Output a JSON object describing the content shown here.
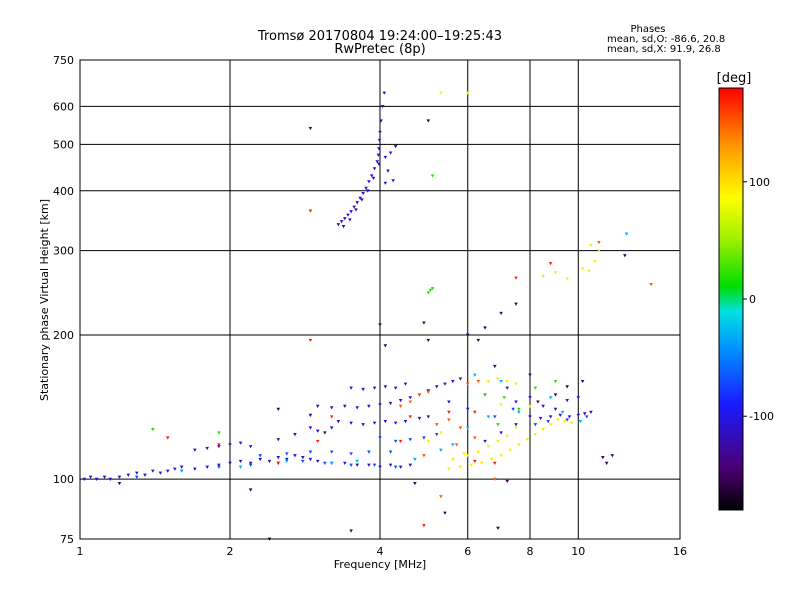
{
  "chart_data": {
    "type": "scatter",
    "title": "Tromsø 20170804 19:24:00–19:25:43",
    "subtitle": "RwPretec (8p)",
    "stats": {
      "heading": "Phases",
      "line_o": "mean, sd,O: -86.6, 20.8",
      "line_x": "mean, sd,X: 91.9, 26.8"
    },
    "xlabel": "Frequency [MHz]",
    "ylabel": "Stationary phase Virtual Height [km]",
    "x_scale": "log",
    "y_scale": "log",
    "xlim": [
      1,
      16
    ],
    "ylim": [
      75,
      750
    ],
    "x_ticks": [
      1,
      2,
      4,
      6,
      8,
      10,
      16
    ],
    "x_tick_labels": [
      "1",
      "2",
      "4",
      "6",
      "8",
      "10",
      "16"
    ],
    "y_ticks": [
      75,
      100,
      200,
      300,
      400,
      500,
      600,
      750
    ],
    "y_tick_labels": [
      "75",
      "100",
      "200",
      "300",
      "400",
      "500",
      "600",
      "750"
    ],
    "grid": true,
    "colorbar": {
      "label": "[deg]",
      "range": [
        -180,
        180
      ],
      "ticks": [
        100,
        0,
        -100
      ],
      "tick_labels": [
        "100",
        "0",
        "-100"
      ]
    },
    "series": [
      {
        "phase": -110,
        "points": [
          [
            1.02,
            100
          ],
          [
            1.05,
            101
          ],
          [
            1.08,
            100
          ],
          [
            1.12,
            101
          ],
          [
            1.15,
            100
          ],
          [
            1.2,
            101
          ],
          [
            1.25,
            102
          ],
          [
            1.3,
            103
          ],
          [
            1.35,
            102
          ],
          [
            1.4,
            104
          ],
          [
            1.45,
            103
          ],
          [
            1.5,
            104
          ],
          [
            1.55,
            105
          ],
          [
            1.6,
            106
          ],
          [
            1.7,
            105
          ],
          [
            1.8,
            106
          ],
          [
            1.9,
            107
          ],
          [
            2.0,
            108
          ],
          [
            2.1,
            109
          ],
          [
            2.2,
            108
          ],
          [
            2.3,
            110
          ],
          [
            2.4,
            109
          ],
          [
            2.5,
            111
          ],
          [
            2.6,
            110
          ],
          [
            2.7,
            112
          ],
          [
            2.8,
            111
          ],
          [
            2.9,
            110
          ],
          [
            3.0,
            109
          ],
          [
            3.2,
            108
          ],
          [
            3.4,
            108
          ],
          [
            3.6,
            107
          ],
          [
            3.8,
            107
          ],
          [
            4.0,
            106
          ],
          [
            4.2,
            107
          ],
          [
            4.4,
            106
          ],
          [
            4.6,
            107
          ],
          [
            1.7,
            115
          ],
          [
            1.8,
            116
          ],
          [
            1.9,
            117
          ],
          [
            2.0,
            118
          ],
          [
            2.1,
            119
          ],
          [
            2.2,
            117
          ],
          [
            2.5,
            121
          ],
          [
            2.7,
            124
          ],
          [
            2.9,
            128
          ],
          [
            3.0,
            126
          ],
          [
            3.2,
            128
          ],
          [
            3.0,
            142
          ],
          [
            3.2,
            141
          ],
          [
            3.4,
            142
          ],
          [
            3.6,
            141
          ],
          [
            3.8,
            142
          ],
          [
            4.0,
            143
          ],
          [
            4.2,
            144
          ],
          [
            4.4,
            146
          ],
          [
            4.6,
            148
          ],
          [
            4.8,
            150
          ],
          [
            5.0,
            153
          ],
          [
            5.2,
            156
          ],
          [
            5.4,
            158
          ],
          [
            5.6,
            160
          ],
          [
            5.8,
            162
          ],
          [
            3.3,
            132
          ],
          [
            3.5,
            131
          ],
          [
            3.7,
            130
          ],
          [
            3.9,
            131
          ],
          [
            4.1,
            132
          ],
          [
            4.3,
            131
          ],
          [
            4.5,
            132
          ],
          [
            4.8,
            134
          ],
          [
            5.0,
            135
          ],
          [
            3.5,
            155
          ],
          [
            3.7,
            154
          ],
          [
            3.9,
            155
          ],
          [
            4.1,
            156
          ],
          [
            4.3,
            155
          ],
          [
            4.5,
            158
          ],
          [
            8.0,
            135
          ],
          [
            8.4,
            134
          ],
          [
            8.8,
            135
          ],
          [
            9.2,
            136
          ],
          [
            9.6,
            135
          ],
          [
            10.0,
            136
          ],
          [
            10.3,
            137
          ],
          [
            10.6,
            138
          ],
          [
            7.5,
            145
          ],
          [
            8.0,
            148
          ],
          [
            8.5,
            142
          ],
          [
            9.0,
            140
          ],
          [
            9.5,
            146
          ],
          [
            10.0,
            148
          ],
          [
            6.5,
            120
          ],
          [
            7.0,
            125
          ],
          [
            7.5,
            130
          ],
          [
            6.0,
            140
          ],
          [
            5.5,
            145
          ],
          [
            6.5,
            150
          ],
          [
            7.2,
            155
          ],
          [
            3.3,
            340
          ],
          [
            3.35,
            345
          ],
          [
            3.4,
            350
          ],
          [
            3.45,
            356
          ],
          [
            3.5,
            362
          ],
          [
            3.55,
            370
          ],
          [
            3.6,
            378
          ],
          [
            3.65,
            386
          ],
          [
            3.7,
            395
          ],
          [
            3.75,
            405
          ],
          [
            3.8,
            418
          ],
          [
            3.85,
            430
          ],
          [
            3.9,
            445
          ],
          [
            3.95,
            460
          ],
          [
            3.97,
            475
          ],
          [
            3.98,
            490
          ],
          [
            3.99,
            510
          ],
          [
            4.0,
            530
          ],
          [
            4.02,
            560
          ],
          [
            4.05,
            600
          ],
          [
            4.08,
            640
          ],
          [
            3.38,
            337
          ],
          [
            3.48,
            348
          ],
          [
            3.58,
            365
          ],
          [
            3.68,
            383
          ],
          [
            3.78,
            400
          ],
          [
            3.88,
            425
          ],
          [
            3.98,
            455
          ],
          [
            4.1,
            470
          ],
          [
            4.2,
            480
          ],
          [
            4.3,
            495
          ],
          [
            4.15,
            440
          ],
          [
            4.25,
            420
          ],
          [
            4.1,
            415
          ]
        ]
      },
      {
        "phase": -70,
        "points": [
          [
            1.3,
            101
          ],
          [
            1.6,
            104
          ],
          [
            1.9,
            106
          ],
          [
            2.2,
            107
          ],
          [
            2.5,
            108
          ],
          [
            2.8,
            109
          ],
          [
            3.1,
            108
          ],
          [
            3.5,
            107
          ],
          [
            3.9,
            107
          ],
          [
            4.3,
            106
          ],
          [
            2.3,
            112
          ],
          [
            2.6,
            113
          ],
          [
            2.9,
            114
          ],
          [
            3.2,
            114
          ],
          [
            3.5,
            113
          ],
          [
            3.8,
            114
          ],
          [
            4.2,
            114
          ],
          [
            4.0,
            122
          ],
          [
            4.3,
            120
          ],
          [
            4.6,
            121
          ],
          [
            4.9,
            122
          ],
          [
            5.2,
            124
          ],
          [
            8.2,
            130
          ],
          [
            8.7,
            132
          ],
          [
            9.5,
            133
          ],
          [
            10.4,
            135
          ],
          [
            6.8,
            135
          ],
          [
            7.4,
            140
          ]
        ]
      },
      {
        "phase": -30,
        "points": [
          [
            1.6,
            104
          ],
          [
            2.1,
            106
          ],
          [
            2.6,
            109
          ],
          [
            3.2,
            108
          ],
          [
            3.6,
            109
          ],
          [
            4.7,
            110
          ],
          [
            5.3,
            115
          ],
          [
            5.6,
            118
          ],
          [
            6.0,
            128
          ],
          [
            6.6,
            135
          ],
          [
            7.6,
            138
          ],
          [
            8.8,
            148
          ],
          [
            9.3,
            138
          ],
          [
            10.1,
            132
          ],
          [
            7.0,
            160
          ],
          [
            6.2,
            165
          ],
          [
            12.5,
            325
          ]
        ]
      },
      {
        "phase": 20,
        "points": [
          [
            1.4,
            127
          ],
          [
            1.9,
            125
          ],
          [
            5.0,
            245
          ],
          [
            5.05,
            248
          ],
          [
            5.1,
            250
          ],
          [
            5.1,
            430
          ],
          [
            6.5,
            150
          ],
          [
            7.1,
            148
          ],
          [
            7.6,
            140
          ],
          [
            8.2,
            155
          ],
          [
            9.0,
            160
          ],
          [
            6.9,
            130
          ]
        ]
      },
      {
        "phase": 95,
        "points": [
          [
            5.5,
            105
          ],
          [
            5.8,
            106
          ],
          [
            6.1,
            107
          ],
          [
            6.4,
            108
          ],
          [
            6.7,
            110
          ],
          [
            7.0,
            112
          ],
          [
            7.3,
            115
          ],
          [
            7.6,
            118
          ],
          [
            7.9,
            121
          ],
          [
            8.2,
            124
          ],
          [
            8.5,
            127
          ],
          [
            8.8,
            130
          ],
          [
            9.1,
            133
          ],
          [
            9.4,
            132
          ],
          [
            9.7,
            131
          ],
          [
            6.0,
            112
          ],
          [
            6.3,
            114
          ],
          [
            6.6,
            117
          ],
          [
            6.9,
            120
          ],
          [
            7.2,
            123
          ],
          [
            7.5,
            128
          ],
          [
            6.6,
            160
          ],
          [
            6.9,
            162
          ],
          [
            7.2,
            160
          ],
          [
            7.5,
            158
          ],
          [
            5.6,
            110
          ],
          [
            5.9,
            113
          ],
          [
            5.0,
            120
          ],
          [
            5.3,
            125
          ],
          [
            8.5,
            265
          ],
          [
            9.0,
            270
          ],
          [
            9.5,
            262
          ],
          [
            10.2,
            275
          ],
          [
            10.5,
            272
          ],
          [
            10.8,
            285
          ],
          [
            11.0,
            300
          ],
          [
            10.6,
            308
          ],
          [
            5.3,
            640
          ],
          [
            6.0,
            640
          ],
          [
            7.0,
            143
          ],
          [
            8.0,
            142
          ]
        ]
      },
      {
        "phase": 150,
        "points": [
          [
            4.4,
            142
          ],
          [
            4.6,
            145
          ],
          [
            4.8,
            150
          ],
          [
            5.0,
            152
          ],
          [
            5.2,
            130
          ],
          [
            5.5,
            133
          ],
          [
            5.8,
            128
          ],
          [
            6.0,
            158
          ],
          [
            6.3,
            160
          ],
          [
            5.3,
            92
          ],
          [
            6.8,
            100
          ],
          [
            4.9,
            112
          ],
          [
            5.7,
            118
          ],
          [
            6.2,
            122
          ],
          [
            11.0,
            312
          ],
          [
            14.0,
            255
          ]
        ]
      },
      {
        "phase": 170,
        "points": [
          [
            1.5,
            122
          ],
          [
            1.9,
            118
          ],
          [
            2.5,
            108
          ],
          [
            2.9,
            195
          ],
          [
            3.0,
            120
          ],
          [
            3.2,
            135
          ],
          [
            4.4,
            120
          ],
          [
            4.6,
            135
          ],
          [
            4.9,
            80
          ],
          [
            6.2,
            138
          ],
          [
            7.5,
            263
          ],
          [
            8.8,
            282
          ],
          [
            5.5,
            138
          ],
          [
            6.2,
            109
          ],
          [
            6.8,
            108
          ],
          [
            2.9,
            363
          ]
        ]
      },
      {
        "phase": -150,
        "points": [
          [
            1.2,
            98
          ],
          [
            2.2,
            95
          ],
          [
            2.4,
            75
          ],
          [
            3.5,
            78
          ],
          [
            2.9,
            540
          ],
          [
            5.0,
            560
          ],
          [
            4.9,
            212
          ],
          [
            5.0,
            195
          ],
          [
            6.0,
            200
          ],
          [
            6.5,
            207
          ],
          [
            7.0,
            222
          ],
          [
            7.5,
            232
          ],
          [
            8.0,
            165
          ],
          [
            8.3,
            145
          ],
          [
            9.0,
            150
          ],
          [
            9.5,
            156
          ],
          [
            10.2,
            160
          ],
          [
            11.2,
            111
          ],
          [
            11.4,
            108
          ],
          [
            11.7,
            112
          ],
          [
            12.4,
            293
          ],
          [
            7.2,
            99
          ],
          [
            5.4,
            85
          ],
          [
            4.7,
            98
          ],
          [
            6.3,
            195
          ],
          [
            6.8,
            172
          ],
          [
            4.0,
            210
          ],
          [
            4.1,
            190
          ],
          [
            6.9,
            79
          ],
          [
            3.1,
            125
          ],
          [
            2.9,
            136
          ],
          [
            2.5,
            140
          ]
        ]
      }
    ]
  }
}
